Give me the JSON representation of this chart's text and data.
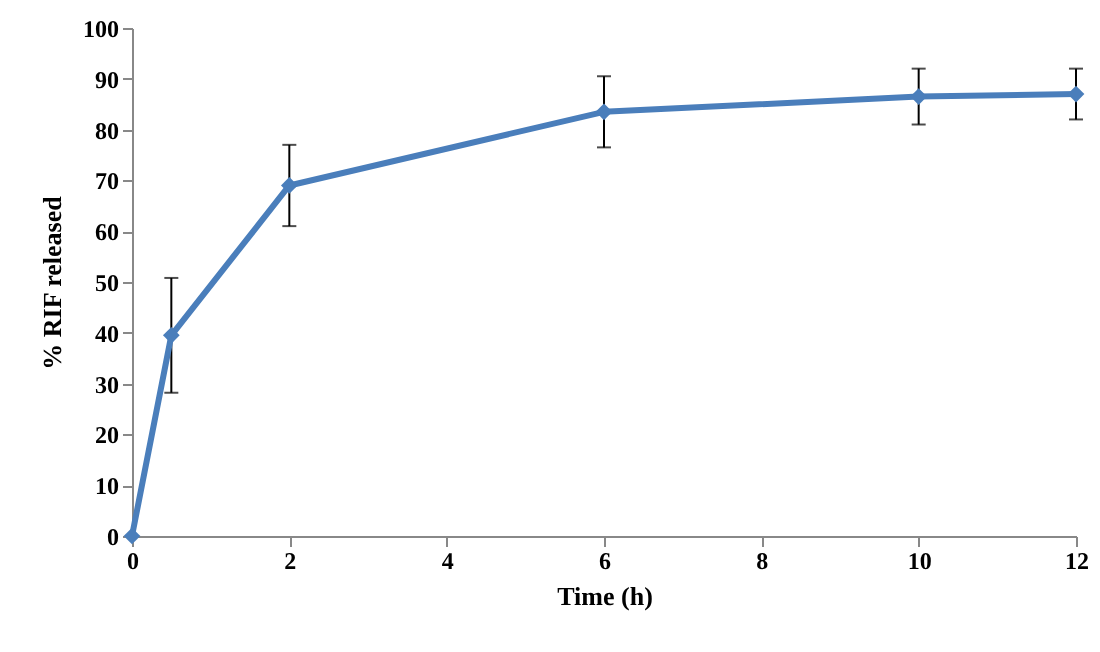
{
  "chart_data": {
    "type": "line",
    "xlabel": "Time (h)",
    "ylabel": "% RIF released",
    "x": [
      0,
      0.5,
      2,
      6,
      10,
      12
    ],
    "series": [
      {
        "color": "#4a7ebb",
        "values": [
          0,
          39.5,
          69,
          83.5,
          86.5,
          87
        ],
        "errors": [
          null,
          11.3,
          8,
          7,
          5.5,
          5
        ]
      }
    ],
    "xlim": [
      0,
      12
    ],
    "xticks": [
      0,
      2,
      4,
      6,
      8,
      10,
      12
    ],
    "ylim": [
      0,
      100
    ],
    "yticks": [
      0,
      10,
      20,
      30,
      40,
      50,
      60,
      70,
      80,
      90,
      100
    ],
    "grid": false,
    "marker": "diamond",
    "line_style": "solid"
  }
}
